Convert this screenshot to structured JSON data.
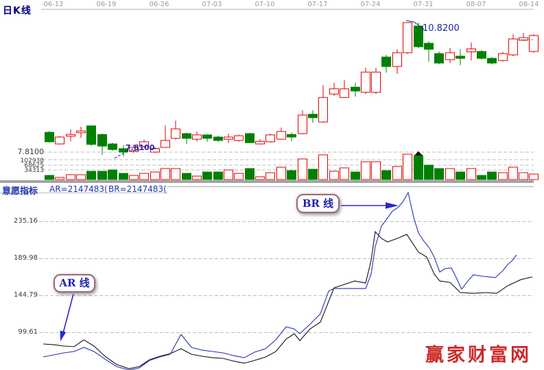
{
  "header": {
    "title": "日K线"
  },
  "date_axis": {
    "labels": [
      "06-12",
      "06-19",
      "06-26",
      "07-03",
      "07-10",
      "07-17",
      "07-24",
      "07-31",
      "08-07",
      "08-14"
    ]
  },
  "kline_pane": {
    "price_gridline_label": "7.8100",
    "volume_axis_labels": [
      "102938",
      "68625",
      "34313"
    ],
    "low_annotation": "7.8100",
    "high_annotation": "10.8200"
  },
  "indicator_pane": {
    "title": "意愿指标",
    "ar_value_text": "AR=2147483(",
    "br_value_text": "BR=2147483(",
    "axis_labels": [
      "235.16",
      "189.98",
      "144.79",
      "99.61"
    ],
    "ar_tag": "AR 线",
    "br_tag": "BR 线"
  },
  "watermark": {
    "text": "赢家财富网"
  },
  "colors": {
    "up_candle": "#e00000",
    "down_candle": "#008000",
    "navy_annotation": "#2222aa",
    "ar_line": "#111111",
    "br_line": "#2233aa",
    "grid": "#bcbcbc",
    "separator": "#a3a3a3",
    "date_text": "#9a9a9a",
    "watermark_red": "#cc2b2b",
    "marker_black": "#111111"
  },
  "chart_data": [
    {
      "type": "candlestick",
      "title": "日K线 (daily K-line with volume)",
      "note": "color g = green filled (close<open), r = red hollow (close>open); values estimated from axis refs 7.8100 / 10.8200; volume from ticks 34313/68625/102938",
      "columns": [
        "x_px",
        "color",
        "open",
        "close",
        "high",
        "low",
        "volume"
      ],
      "volume_ticks": [
        102938,
        68625,
        34313
      ],
      "price_gridline": 7.81,
      "annotated_low": 7.81,
      "annotated_high": 10.82,
      "volume_marker_index": 35,
      "candles": [
        [
          72,
          "g",
          8.27,
          8.05,
          8.3,
          8.03,
          21300
        ],
        [
          87,
          "r",
          8.0,
          8.16,
          8.19,
          7.99,
          10600
        ],
        [
          103,
          "r",
          8.18,
          8.22,
          8.34,
          8.06,
          24800
        ],
        [
          118,
          "r",
          8.26,
          8.3,
          8.4,
          8.14,
          24800
        ],
        [
          133,
          "g",
          8.42,
          7.99,
          8.43,
          7.95,
          42600
        ],
        [
          149,
          "g",
          8.22,
          7.95,
          8.24,
          7.75,
          42600
        ],
        [
          164,
          "g",
          8.0,
          7.87,
          8.03,
          7.84,
          49700
        ],
        [
          180,
          "g",
          7.89,
          7.81,
          7.97,
          7.71,
          31900
        ],
        [
          195,
          "r",
          7.83,
          7.92,
          7.99,
          7.79,
          21300
        ],
        [
          210,
          "r",
          7.94,
          8.05,
          8.1,
          7.91,
          31900
        ],
        [
          226,
          "r",
          7.81,
          7.89,
          7.92,
          7.79,
          39000
        ],
        [
          241,
          "r",
          7.92,
          8.08,
          8.43,
          7.91,
          56800
        ],
        [
          256,
          "r",
          8.13,
          8.35,
          8.54,
          8.1,
          56800
        ],
        [
          272,
          "g",
          8.24,
          8.13,
          8.26,
          8.0,
          31900
        ],
        [
          287,
          "r",
          8.11,
          8.21,
          8.29,
          8.06,
          17700
        ],
        [
          302,
          "g",
          8.21,
          8.13,
          8.22,
          8.05,
          39000
        ],
        [
          318,
          "g",
          8.16,
          8.08,
          8.19,
          8.05,
          39000
        ],
        [
          333,
          "r",
          8.11,
          8.16,
          8.24,
          8.02,
          49700
        ],
        [
          348,
          "r",
          8.08,
          8.19,
          8.22,
          8.05,
          31900
        ],
        [
          364,
          "g",
          8.24,
          8.03,
          8.26,
          8.02,
          56800
        ],
        [
          379,
          "r",
          8.0,
          8.06,
          8.11,
          7.99,
          14200
        ],
        [
          394,
          "r",
          8.05,
          8.21,
          8.24,
          8.03,
          35500
        ],
        [
          410,
          "r",
          8.11,
          8.29,
          8.38,
          8.1,
          63900
        ],
        [
          425,
          "g",
          8.22,
          8.16,
          8.27,
          8.06,
          46100
        ],
        [
          441,
          "r",
          8.24,
          8.67,
          8.78,
          8.22,
          106500
        ],
        [
          456,
          "g",
          8.69,
          8.61,
          8.78,
          8.49,
          53200
        ],
        [
          471,
          "r",
          8.51,
          9.08,
          9.37,
          8.49,
          127800
        ],
        [
          487,
          "r",
          9.16,
          9.28,
          9.42,
          9.12,
          42600
        ],
        [
          502,
          "r",
          9.08,
          9.28,
          9.48,
          9.07,
          60300
        ],
        [
          518,
          "g",
          9.32,
          9.23,
          9.42,
          9.1,
          39000
        ],
        [
          533,
          "r",
          9.2,
          9.67,
          9.77,
          9.16,
          92300
        ],
        [
          548,
          "r",
          9.2,
          9.67,
          9.77,
          9.16,
          92300
        ],
        [
          563,
          "g",
          10.02,
          9.8,
          10.07,
          9.66,
          46100
        ],
        [
          579,
          "r",
          9.8,
          10.12,
          10.2,
          9.63,
          67400
        ],
        [
          594,
          "r",
          10.12,
          10.82,
          10.82,
          10.09,
          131300
        ],
        [
          610,
          "g",
          10.74,
          10.26,
          10.82,
          10.23,
          124200
        ],
        [
          625,
          "g",
          10.34,
          10.2,
          10.39,
          9.91,
          74500
        ],
        [
          640,
          "g",
          10.1,
          9.88,
          10.15,
          9.85,
          56800
        ],
        [
          656,
          "r",
          9.96,
          10.12,
          10.23,
          9.88,
          56800
        ],
        [
          671,
          "g",
          10.04,
          9.99,
          10.2,
          9.83,
          39000
        ],
        [
          687,
          "r",
          10.14,
          10.21,
          10.36,
          9.94,
          56800
        ],
        [
          702,
          "g",
          10.15,
          9.99,
          10.18,
          9.96,
          21300
        ],
        [
          717,
          "g",
          9.99,
          9.88,
          10.02,
          9.85,
          39000
        ],
        [
          733,
          "r",
          9.94,
          10.1,
          10.14,
          9.91,
          35500
        ],
        [
          748,
          "r",
          10.07,
          10.44,
          10.55,
          10.04,
          63900
        ],
        [
          763,
          "r",
          10.41,
          10.47,
          10.58,
          10.39,
          35500
        ],
        [
          778,
          "r",
          10.15,
          10.52,
          10.55,
          10.12,
          28400
        ]
      ]
    },
    {
      "type": "line",
      "title": "意愿指标 (AR/BR)",
      "yticks": [
        235.16,
        189.98,
        144.79,
        99.61
      ],
      "legend_position": "none",
      "series": [
        {
          "name": "AR",
          "points": [
            [
              63,
              85.4
            ],
            [
              78,
              84.5
            ],
            [
              93,
              82.9
            ],
            [
              108,
              82.0
            ],
            [
              122,
              90.4
            ],
            [
              137,
              82.9
            ],
            [
              153,
              70.3
            ],
            [
              170,
              60.3
            ],
            [
              188,
              55.3
            ],
            [
              203,
              57.8
            ],
            [
              218,
              66.1
            ],
            [
              233,
              70.3
            ],
            [
              248,
              73.6
            ],
            [
              264,
              79.5
            ],
            [
              279,
              72.8
            ],
            [
              295,
              70.3
            ],
            [
              310,
              68.6
            ],
            [
              325,
              67.8
            ],
            [
              341,
              64.4
            ],
            [
              356,
              61.9
            ],
            [
              371,
              65.3
            ],
            [
              387,
              69.4
            ],
            [
              402,
              76.1
            ],
            [
              417,
              91.2
            ],
            [
              429,
              97.9
            ],
            [
              437,
              89.5
            ],
            [
              452,
              103.7
            ],
            [
              467,
              112.1
            ],
            [
              479,
              137.2
            ],
            [
              487,
              153.9
            ],
            [
              502,
              158.1
            ],
            [
              517,
              162.3
            ],
            [
              533,
              159.8
            ],
            [
              541,
              187.4
            ],
            [
              547,
              222.6
            ],
            [
              556,
              214.2
            ],
            [
              565,
              210.0
            ],
            [
              579,
              214.2
            ],
            [
              593,
              219.2
            ],
            [
              610,
              197.5
            ],
            [
              622,
              191.6
            ],
            [
              633,
              170.7
            ],
            [
              641,
              162.3
            ],
            [
              656,
              160.6
            ],
            [
              671,
              148.1
            ],
            [
              690,
              147.2
            ],
            [
              709,
              148.1
            ],
            [
              724,
              147.2
            ],
            [
              740,
              156.4
            ],
            [
              759,
              163.9
            ],
            [
              776,
              167.3
            ]
          ]
        },
        {
          "name": "BR",
          "points": [
            [
              63,
              69.5
            ],
            [
              78,
              72.0
            ],
            [
              93,
              74.5
            ],
            [
              108,
              76.2
            ],
            [
              122,
              81.2
            ],
            [
              137,
              76.2
            ],
            [
              153,
              66.9
            ],
            [
              170,
              57.8
            ],
            [
              188,
              53.6
            ],
            [
              203,
              56.1
            ],
            [
              218,
              65.3
            ],
            [
              233,
              69.5
            ],
            [
              248,
              72.8
            ],
            [
              264,
              97.1
            ],
            [
              279,
              81.2
            ],
            [
              295,
              77.8
            ],
            [
              310,
              76.2
            ],
            [
              325,
              74.5
            ],
            [
              341,
              71.1
            ],
            [
              356,
              68.6
            ],
            [
              371,
              75.3
            ],
            [
              387,
              79.5
            ],
            [
              402,
              90.4
            ],
            [
              417,
              106.3
            ],
            [
              429,
              103.7
            ],
            [
              437,
              97.9
            ],
            [
              452,
              109.6
            ],
            [
              467,
              122.2
            ],
            [
              479,
              149.8
            ],
            [
              487,
              153.1
            ],
            [
              502,
              153.1
            ],
            [
              517,
              153.1
            ],
            [
              533,
              153.1
            ],
            [
              541,
              170.7
            ],
            [
              547,
              204.2
            ],
            [
              556,
              229.3
            ],
            [
              565,
              239.3
            ],
            [
              572,
              247.7
            ],
            [
              580,
              251.9
            ],
            [
              587,
              258.6
            ],
            [
              595,
              270.3
            ],
            [
              603,
              240.2
            ],
            [
              610,
              220.9
            ],
            [
              618,
              210.8
            ],
            [
              626,
              202.5
            ],
            [
              633,
              191.6
            ],
            [
              641,
              173.2
            ],
            [
              649,
              177.4
            ],
            [
              658,
              178.2
            ],
            [
              665,
              166.5
            ],
            [
              673,
              152.3
            ],
            [
              682,
              162.3
            ],
            [
              690,
              169.8
            ],
            [
              702,
              168.2
            ],
            [
              712,
              167.3
            ],
            [
              722,
              166.5
            ],
            [
              733,
              174.8
            ],
            [
              740,
              182.4
            ],
            [
              747,
              187.4
            ],
            [
              753,
              194.1
            ]
          ]
        }
      ]
    }
  ]
}
